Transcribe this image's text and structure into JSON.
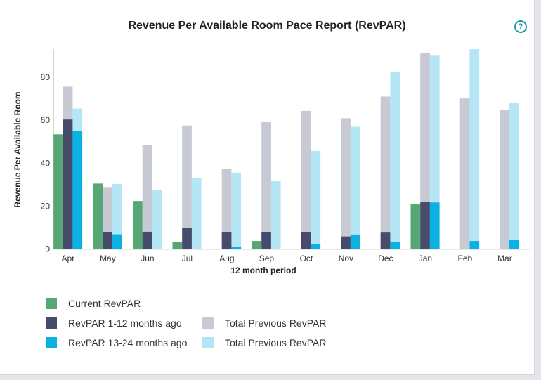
{
  "chart_data": {
    "type": "bar",
    "title": "Revenue Per Available Room Pace Report (RevPAR)",
    "xlabel": "12 month period",
    "ylabel": "Revenue Per Available Room",
    "ylim": [
      0,
      93
    ],
    "yticks": [
      0,
      20,
      40,
      60,
      80
    ],
    "grid": false,
    "legend_position": "bottom",
    "categories": [
      "Apr",
      "May",
      "Jun",
      "Jul",
      "Aug",
      "Sep",
      "Oct",
      "Nov",
      "Dec",
      "Jan",
      "Feb",
      "Mar"
    ],
    "series": [
      {
        "name": "Current RevPAR",
        "color": "#56a773",
        "values": [
          53.4,
          30.5,
          22.4,
          3.4,
          0,
          3.8,
          0,
          0,
          0,
          20.8,
          0,
          0
        ]
      },
      {
        "name": "Total Previous RevPAR",
        "color": "#c8cad3",
        "values": [
          75.6,
          28.9,
          48.3,
          57.5,
          37.3,
          59.4,
          64.3,
          60.9,
          71.0,
          91.3,
          70.1,
          64.9
        ]
      },
      {
        "name": "RevPAR 1-12 months ago",
        "color": "#454c6c",
        "values": [
          60.3,
          7.8,
          8.1,
          9.8,
          7.8,
          7.8,
          8.0,
          5.9,
          7.7,
          22.0,
          0,
          0
        ]
      },
      {
        "name": "Total Previous RevPAR",
        "color": "#b4e6f5",
        "values": [
          65.4,
          30.3,
          27.4,
          32.9,
          35.6,
          31.6,
          45.7,
          56.9,
          82.3,
          90.0,
          93.0,
          67.9
        ]
      },
      {
        "name": "RevPAR 13-24 months ago",
        "color": "#0cb1e3",
        "values": [
          55.1,
          6.9,
          0,
          0,
          0.9,
          0,
          2.3,
          6.8,
          3.2,
          21.7,
          3.8,
          4.2
        ]
      }
    ]
  },
  "help_icon": "question-circle-icon",
  "help_text": "?"
}
